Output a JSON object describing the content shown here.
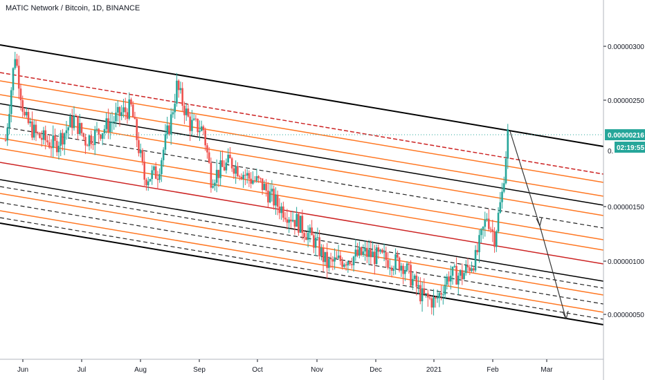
{
  "header": {
    "title": "MATIC Network / Bitcoin, 1D, BINANCE"
  },
  "colors": {
    "up": "#26a69a",
    "down": "#ef5350",
    "channel_outer": "#000000",
    "channel_orange": "#ff7722",
    "channel_red": "#cc2222",
    "channel_dashed": "#222222",
    "last_price_bg": "#26a69a",
    "arrow": "#333333"
  },
  "chart_data": {
    "type": "candlestick",
    "title": "MATIC Network / Bitcoin, 1D, BINANCE",
    "x_ticks": [
      "Jun",
      "Jul",
      "Aug",
      "Sep",
      "Oct",
      "Nov",
      "Dec",
      "2021",
      "Feb",
      "Mar"
    ],
    "y_ticks": [
      "0.00000050",
      "0.00000100",
      "0.00000150",
      "0.00000250",
      "0.00000300"
    ],
    "ylim": [
      7e-08,
      3.4e-06
    ],
    "last_price": "0.00000216",
    "countdown": "02:19:55",
    "last_price_partial": "0.",
    "close_series": [
      {
        "date": "2020-05-20",
        "close": 2.1e-06
      },
      {
        "date": "2020-05-25",
        "close": 2.9e-06
      },
      {
        "date": "2020-05-30",
        "close": 2.3e-06
      },
      {
        "date": "2020-06-05",
        "close": 2.15e-06
      },
      {
        "date": "2020-06-15",
        "close": 2.05e-06
      },
      {
        "date": "2020-06-25",
        "close": 2.3e-06
      },
      {
        "date": "2020-07-01",
        "close": 2.1e-06
      },
      {
        "date": "2020-07-10",
        "close": 2.2e-06
      },
      {
        "date": "2020-07-20",
        "close": 2.35e-06
      },
      {
        "date": "2020-07-25",
        "close": 2.4e-06
      },
      {
        "date": "2020-08-01",
        "close": 1.75e-06
      },
      {
        "date": "2020-08-08",
        "close": 1.8e-06
      },
      {
        "date": "2020-08-15",
        "close": 2.3e-06
      },
      {
        "date": "2020-08-18",
        "close": 2.6e-06
      },
      {
        "date": "2020-08-25",
        "close": 2.25e-06
      },
      {
        "date": "2020-09-01",
        "close": 2.2e-06
      },
      {
        "date": "2020-09-05",
        "close": 1.75e-06
      },
      {
        "date": "2020-09-15",
        "close": 1.9e-06
      },
      {
        "date": "2020-09-25",
        "close": 1.75e-06
      },
      {
        "date": "2020-10-01",
        "close": 1.7e-06
      },
      {
        "date": "2020-10-10",
        "close": 1.5e-06
      },
      {
        "date": "2020-10-20",
        "close": 1.35e-06
      },
      {
        "date": "2020-10-30",
        "close": 1.15e-06
      },
      {
        "date": "2020-11-05",
        "close": 9.5e-07
      },
      {
        "date": "2020-11-15",
        "close": 1e-06
      },
      {
        "date": "2020-11-25",
        "close": 1.05e-06
      },
      {
        "date": "2020-12-05",
        "close": 1e-06
      },
      {
        "date": "2020-12-15",
        "close": 9.5e-07
      },
      {
        "date": "2020-12-25",
        "close": 6.5e-07
      },
      {
        "date": "2021-01-01",
        "close": 6e-07
      },
      {
        "date": "2021-01-08",
        "close": 8.5e-07
      },
      {
        "date": "2021-01-15",
        "close": 8.5e-07
      },
      {
        "date": "2021-01-22",
        "close": 1e-06
      },
      {
        "date": "2021-01-28",
        "close": 1.4e-06
      },
      {
        "date": "2021-02-01",
        "close": 1.2e-06
      },
      {
        "date": "2021-02-05",
        "close": 1.6e-06
      },
      {
        "date": "2021-02-08",
        "close": 2.16e-06
      }
    ]
  }
}
